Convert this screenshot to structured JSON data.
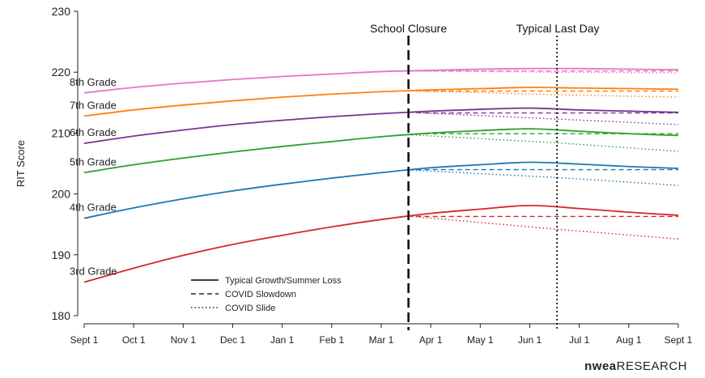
{
  "chart_data": {
    "type": "line",
    "title": "",
    "xlabel": "",
    "ylabel": "RIT Score",
    "x": [
      "Sept 1",
      "Oct 1",
      "Nov 1",
      "Dec 1",
      "Jan 1",
      "Feb 1",
      "Mar 1",
      "Apr 1",
      "May 1",
      "Jun 1",
      "Jul 1",
      "Aug 1",
      "Sept 1"
    ],
    "ylim": [
      180,
      230
    ],
    "yticks": [
      180,
      190,
      200,
      210,
      220,
      230
    ],
    "grid": false,
    "legend_position": "bottom-left",
    "legend": [
      "Typical Growth/Summer Loss",
      "COVID Slowdown",
      "COVID Slide"
    ],
    "annotations": [
      {
        "text": "School Closure",
        "x": 6.55,
        "style": "dashed"
      },
      {
        "text": "Typical Last Day",
        "x": 9.55,
        "style": "dotted"
      }
    ],
    "series": [
      {
        "name": "3rd Grade",
        "color": "#d62728",
        "typical": [
          185.5,
          187.8,
          189.9,
          191.7,
          193.2,
          194.6,
          195.8,
          196.8,
          197.5,
          198.1,
          197.6,
          197.0,
          196.5
        ],
        "slowdown_closure": 196.3,
        "slowdown_end": 196.3,
        "slide_lastday": 194.2,
        "slide_end": 192.6
      },
      {
        "name": "4th Grade",
        "color": "#1f77b4",
        "typical": [
          196.0,
          197.7,
          199.2,
          200.5,
          201.6,
          202.6,
          203.5,
          204.3,
          204.8,
          205.2,
          204.9,
          204.5,
          204.2
        ],
        "slowdown_closure": 204.0,
        "slowdown_end": 204.0,
        "slide_lastday": 202.7,
        "slide_end": 201.4
      },
      {
        "name": "5th Grade",
        "color": "#2ca02c",
        "typical": [
          203.5,
          204.8,
          205.9,
          206.9,
          207.8,
          208.6,
          209.4,
          210.0,
          210.4,
          210.7,
          210.3,
          209.9,
          209.6
        ],
        "slowdown_closure": 209.9,
        "slowdown_end": 209.9,
        "slide_lastday": 208.4,
        "slide_end": 207.0
      },
      {
        "name": "6th Grade",
        "color": "#7b3294",
        "typical": [
          208.3,
          209.5,
          210.5,
          211.4,
          212.1,
          212.7,
          213.2,
          213.6,
          213.9,
          214.1,
          213.8,
          213.6,
          213.4
        ],
        "slowdown_closure": 213.3,
        "slowdown_end": 213.3,
        "slide_lastday": 212.3,
        "slide_end": 211.4
      },
      {
        "name": "7th Grade",
        "color": "#ff7f0e",
        "typical": [
          212.8,
          213.8,
          214.6,
          215.3,
          215.9,
          216.4,
          216.8,
          217.1,
          217.3,
          217.5,
          217.4,
          217.3,
          217.2
        ],
        "slowdown_closure": 216.9,
        "slowdown_end": 216.9,
        "slide_lastday": 216.3,
        "slide_end": 215.9
      },
      {
        "name": "8th Grade",
        "color": "#e377c2",
        "typical": [
          216.6,
          217.5,
          218.2,
          218.8,
          219.3,
          219.7,
          220.1,
          220.3,
          220.5,
          220.6,
          220.6,
          220.5,
          220.4
        ],
        "slowdown_closure": 220.2,
        "slowdown_end": 220.2,
        "slide_lastday": 220.0,
        "slide_end": 219.9
      }
    ]
  },
  "brand": {
    "bold": "nwea",
    "rest": "RESEARCH"
  }
}
